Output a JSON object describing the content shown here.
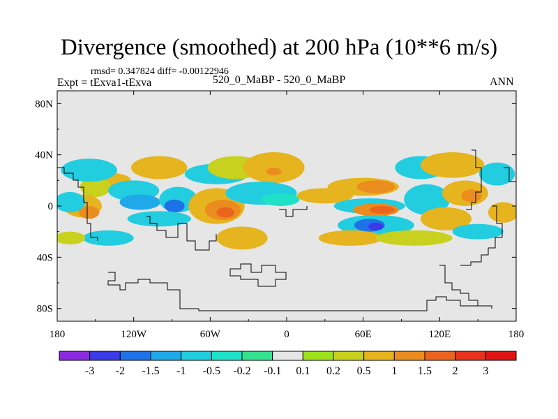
{
  "header": {
    "title": "Divergence (smoothed) at 200 hPa (10**6 m/s)",
    "stats": "rmsd= 0.347824 diff= -0.00122946",
    "experiment": "Expt = tExva1-tExva",
    "case": "520_0_MaBP - 520_0_MaBP",
    "season": "ANN"
  },
  "chart_data": {
    "type": "heatmap",
    "title": "Divergence (smoothed) at 200 hPa (10**6 m/s)",
    "xlabel": "",
    "ylabel": "",
    "xlim": [
      -180,
      180
    ],
    "ylim": [
      -90,
      90
    ],
    "lat_ticks": [
      80,
      40,
      0,
      -40,
      -80
    ],
    "lat_labels": [
      "80N",
      "40N",
      "0",
      "40S",
      "80S"
    ],
    "lon_ticks": [
      -180,
      -120,
      -60,
      0,
      60,
      120,
      180
    ],
    "lon_labels": [
      "180",
      "120W",
      "60W",
      "0",
      "60E",
      "120E",
      "180"
    ],
    "colorbar": {
      "levels": [
        "-3",
        "-2",
        "-1.5",
        "-1",
        "-0.5",
        "-0.2",
        "-0.1",
        "0.1",
        "0.2",
        "0.5",
        "1",
        "1.5",
        "2",
        "3"
      ],
      "colors": [
        "#8a2be2",
        "#3a3ae6",
        "#1e72e8",
        "#1fa8ea",
        "#22cde0",
        "#1ee1c8",
        "#36e08f",
        "#e6e6e6",
        "#9ee21e",
        "#c8d21e",
        "#e6b41e",
        "#eb8c1e",
        "#ea641e",
        "#e8321e",
        "#e01414"
      ]
    },
    "background": "#e6e6e6",
    "features": [
      {
        "lon": -140,
        "lat": 20,
        "rx": 18,
        "ry": 6,
        "level": 10
      },
      {
        "lon": -150,
        "lat": 15,
        "rx": 12,
        "ry": 8,
        "level": 9
      },
      {
        "lon": -120,
        "lat": 12,
        "rx": 20,
        "ry": 8,
        "level": 4
      },
      {
        "lon": -115,
        "lat": 3,
        "rx": 16,
        "ry": 6,
        "level": 3
      },
      {
        "lon": -160,
        "lat": 0,
        "rx": 15,
        "ry": 9,
        "level": 10
      },
      {
        "lon": -155,
        "lat": -5,
        "rx": 8,
        "ry": 5,
        "level": 11
      },
      {
        "lon": -170,
        "lat": 3,
        "rx": 12,
        "ry": 8,
        "level": 4
      },
      {
        "lon": -155,
        "lat": 28,
        "rx": 22,
        "ry": 9,
        "level": 4
      },
      {
        "lon": -100,
        "lat": 30,
        "rx": 22,
        "ry": 9,
        "level": 10
      },
      {
        "lon": -85,
        "lat": 5,
        "rx": 15,
        "ry": 10,
        "level": 4
      },
      {
        "lon": -88,
        "lat": 0,
        "rx": 8,
        "ry": 5,
        "level": 2
      },
      {
        "lon": -100,
        "lat": -10,
        "rx": 25,
        "ry": 6,
        "level": 4
      },
      {
        "lon": -55,
        "lat": 0,
        "rx": 22,
        "ry": 14,
        "level": 10
      },
      {
        "lon": -50,
        "lat": -3,
        "rx": 14,
        "ry": 8,
        "level": 11
      },
      {
        "lon": -48,
        "lat": -5,
        "rx": 7,
        "ry": 4,
        "level": 12
      },
      {
        "lon": -55,
        "lat": 25,
        "rx": 25,
        "ry": 8,
        "level": 4
      },
      {
        "lon": -40,
        "lat": 30,
        "rx": 22,
        "ry": 9,
        "level": 9
      },
      {
        "lon": -10,
        "lat": 30,
        "rx": 24,
        "ry": 12,
        "level": 10
      },
      {
        "lon": -10,
        "lat": 27,
        "rx": 6,
        "ry": 3,
        "level": 11
      },
      {
        "lon": -20,
        "lat": 10,
        "rx": 28,
        "ry": 9,
        "level": 4
      },
      {
        "lon": -5,
        "lat": 5,
        "rx": 15,
        "ry": 5,
        "level": 5
      },
      {
        "lon": -35,
        "lat": -25,
        "rx": 20,
        "ry": 9,
        "level": 10
      },
      {
        "lon": 30,
        "lat": 8,
        "rx": 22,
        "ry": 6,
        "level": 10
      },
      {
        "lon": 60,
        "lat": 15,
        "rx": 28,
        "ry": 7,
        "level": 10
      },
      {
        "lon": 70,
        "lat": 15,
        "rx": 15,
        "ry": 5,
        "level": 11
      },
      {
        "lon": 65,
        "lat": 0,
        "rx": 28,
        "ry": 6,
        "level": 4
      },
      {
        "lon": 70,
        "lat": -3,
        "rx": 18,
        "ry": 5,
        "level": 11
      },
      {
        "lon": 75,
        "lat": -3,
        "rx": 10,
        "ry": 3,
        "level": 12
      },
      {
        "lon": 70,
        "lat": -15,
        "rx": 30,
        "ry": 8,
        "level": 4
      },
      {
        "lon": 65,
        "lat": -15,
        "rx": 12,
        "ry": 5,
        "level": 2
      },
      {
        "lon": 70,
        "lat": -16,
        "rx": 6,
        "ry": 3,
        "level": 1
      },
      {
        "lon": 50,
        "lat": -25,
        "rx": 25,
        "ry": 6,
        "level": 10
      },
      {
        "lon": 105,
        "lat": 30,
        "rx": 20,
        "ry": 9,
        "level": 4
      },
      {
        "lon": 110,
        "lat": 5,
        "rx": 18,
        "ry": 12,
        "level": 4
      },
      {
        "lon": 130,
        "lat": 32,
        "rx": 25,
        "ry": 10,
        "level": 10
      },
      {
        "lon": 140,
        "lat": 10,
        "rx": 18,
        "ry": 10,
        "level": 10
      },
      {
        "lon": 145,
        "lat": 8,
        "rx": 8,
        "ry": 5,
        "level": 11
      },
      {
        "lon": 125,
        "lat": -10,
        "rx": 20,
        "ry": 9,
        "level": 10
      },
      {
        "lon": 165,
        "lat": 25,
        "rx": 14,
        "ry": 9,
        "level": 4
      },
      {
        "lon": 170,
        "lat": -5,
        "rx": 12,
        "ry": 8,
        "level": 10
      },
      {
        "lon": 100,
        "lat": -25,
        "rx": 30,
        "ry": 6,
        "level": 9
      },
      {
        "lon": -140,
        "lat": -25,
        "rx": 20,
        "ry": 6,
        "level": 4
      },
      {
        "lon": -170,
        "lat": -25,
        "rx": 12,
        "ry": 5,
        "level": 9
      },
      {
        "lon": 150,
        "lat": -20,
        "rx": 20,
        "ry": 6,
        "level": 4
      }
    ]
  }
}
